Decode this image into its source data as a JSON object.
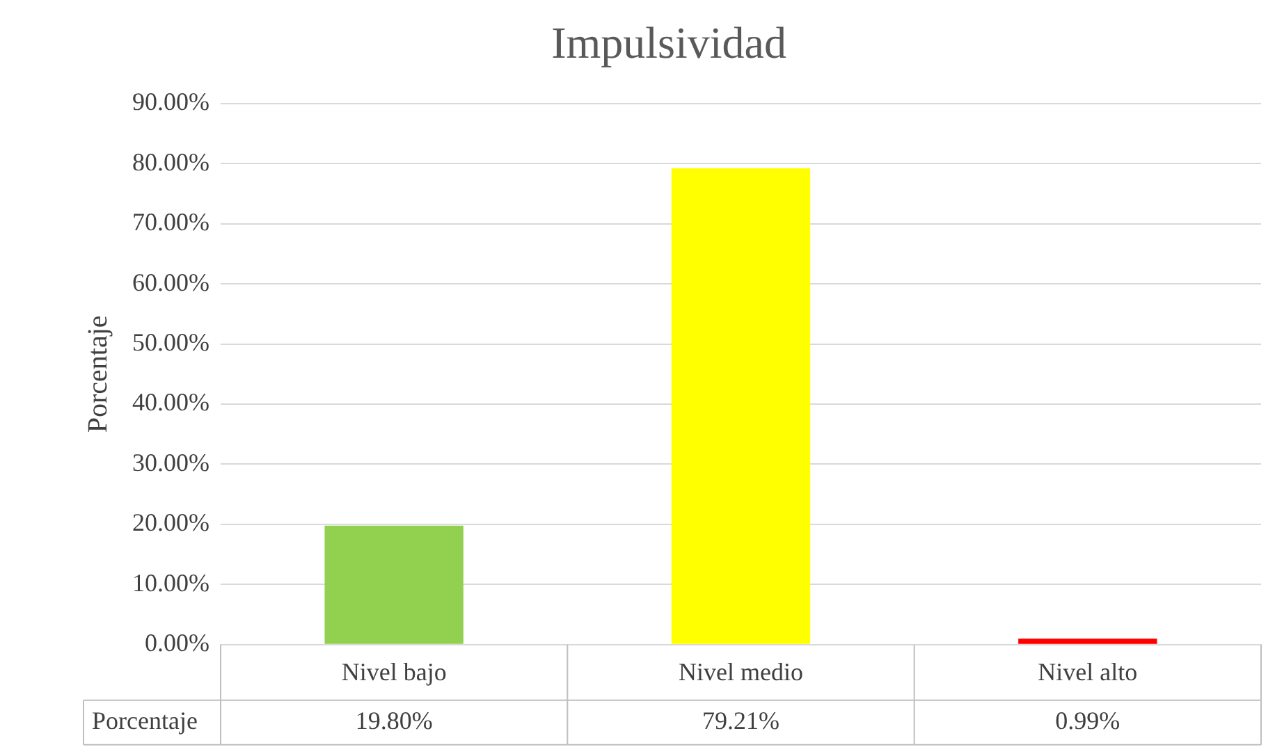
{
  "chart_data": {
    "type": "bar",
    "title": "Impulsividad",
    "ylabel": "Porcentaje",
    "categories": [
      "Nivel bajo",
      "Nivel medio",
      "Nivel alto"
    ],
    "series": [
      {
        "name": "Porcentaje",
        "colors": [
          "#92d050",
          "#ffff00",
          "#ff0000"
        ],
        "values": [
          19.8,
          79.21,
          0.99
        ],
        "value_labels": [
          "19.80%",
          "79.21%",
          "0.99%"
        ]
      }
    ],
    "ylim": [
      0,
      90
    ],
    "yticks": [
      {
        "value": 0,
        "label": "0.00%"
      },
      {
        "value": 10,
        "label": "10.00%"
      },
      {
        "value": 20,
        "label": "20.00%"
      },
      {
        "value": 30,
        "label": "30.00%"
      },
      {
        "value": 40,
        "label": "40.00%"
      },
      {
        "value": 50,
        "label": "50.00%"
      },
      {
        "value": 60,
        "label": "60.00%"
      },
      {
        "value": 70,
        "label": "70.00%"
      },
      {
        "value": 80,
        "label": "80.00%"
      },
      {
        "value": 90,
        "label": "90.00%"
      }
    ],
    "grid": "y",
    "legend": false
  }
}
